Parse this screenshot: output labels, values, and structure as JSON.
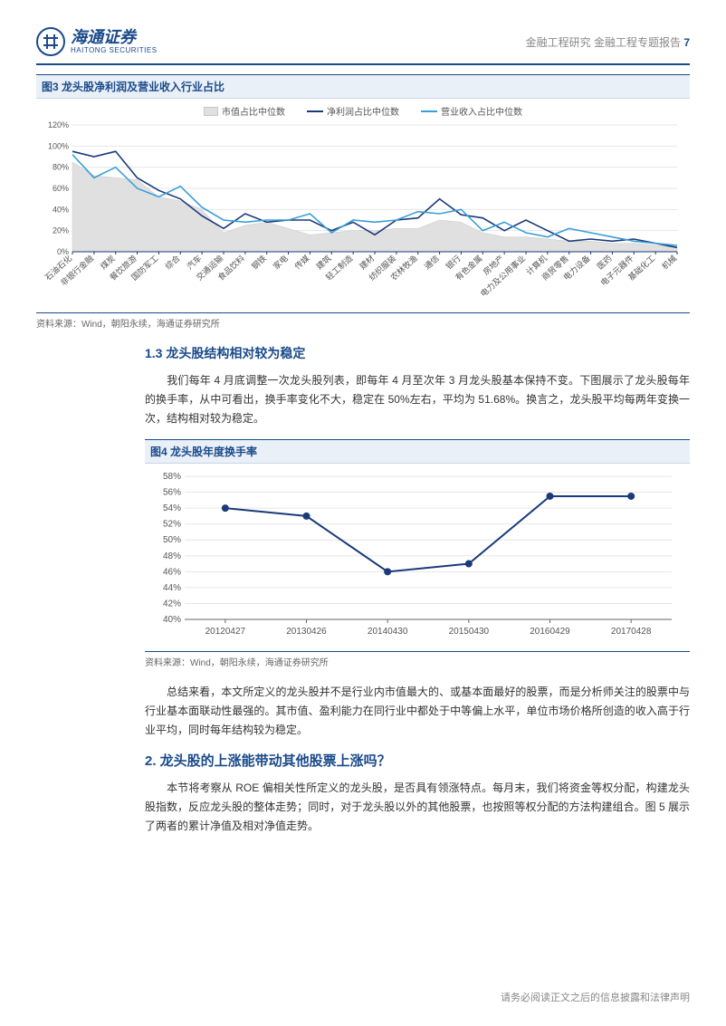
{
  "header": {
    "logo_cn": "海通证券",
    "logo_en": "HAITONG SECURITIES",
    "right_text": "金融工程研究 金融工程专题报告",
    "page_number": "7"
  },
  "figure3": {
    "title": "图3  龙头股净利润及营业收入行业占比",
    "type": "area+line",
    "legend": [
      {
        "label": "市值占比中位数",
        "kind": "area",
        "color": "#e0e0e0"
      },
      {
        "label": "净利润占比中位数",
        "kind": "line",
        "color": "#1a3a7a"
      },
      {
        "label": "营业收入占比中位数",
        "kind": "line",
        "color": "#3a9fd6"
      }
    ],
    "categories": [
      "石油石化",
      "非银行金融",
      "煤炭",
      "餐饮旅游",
      "国防军工",
      "综合",
      "汽车",
      "交通运输",
      "食品饮料",
      "钢铁",
      "家电",
      "传媒",
      "建筑",
      "轻工制造",
      "建材",
      "纺织服装",
      "农林牧渔",
      "通信",
      "银行",
      "有色金属",
      "房地产",
      "电力及公用事业",
      "计算机",
      "商贸零售",
      "电力设备",
      "医药",
      "电子元器件",
      "基础化工",
      "机械"
    ],
    "series_area": [
      85,
      72,
      70,
      68,
      52,
      48,
      40,
      18,
      25,
      28,
      22,
      16,
      18,
      20,
      20,
      22,
      22,
      30,
      28,
      18,
      14,
      14,
      12,
      10,
      10,
      8,
      8,
      6,
      4
    ],
    "series_profit": [
      95,
      90,
      95,
      70,
      58,
      50,
      34,
      22,
      36,
      28,
      30,
      30,
      20,
      28,
      16,
      30,
      32,
      50,
      35,
      32,
      20,
      30,
      20,
      10,
      12,
      10,
      12,
      8,
      4
    ],
    "series_revenue": [
      92,
      70,
      80,
      60,
      52,
      62,
      42,
      30,
      28,
      30,
      30,
      36,
      18,
      30,
      28,
      30,
      38,
      36,
      40,
      20,
      28,
      18,
      14,
      22,
      18,
      14,
      10,
      8,
      6
    ],
    "ylim": [
      0,
      120
    ],
    "yticks": [
      0,
      20,
      40,
      60,
      80,
      100,
      120
    ],
    "ytick_labels": [
      "0%",
      "20%",
      "40%",
      "60%",
      "80%",
      "100%",
      "120%"
    ],
    "axis_color": "#1a3a7a",
    "grid_color": "#e6e6e6",
    "tick_fontsize": 9,
    "xlabel_fontsize": 9,
    "background_color": "#ffffff"
  },
  "source_text": "资料来源：Wind，朝阳永续，海通证券研究所",
  "section_1_3": {
    "heading": "1.3 龙头股结构相对较为稳定",
    "para": "我们每年 4 月底调整一次龙头股列表，即每年 4 月至次年 3 月龙头股基本保持不变。下图展示了龙头股每年的换手率，从中可看出，换手率变化不大，稳定在 50%左右，平均为 51.68%。换言之，龙头股平均每两年变换一次，结构相对较为稳定。"
  },
  "figure4": {
    "title": "图4  龙头股年度换手率",
    "type": "line",
    "categories": [
      "20120427",
      "20130426",
      "20140430",
      "20150430",
      "20160429",
      "20170428"
    ],
    "values": [
      54,
      53,
      46,
      47,
      55.5,
      55.5
    ],
    "ylim": [
      40,
      58
    ],
    "yticks": [
      40,
      42,
      44,
      46,
      48,
      50,
      52,
      54,
      56,
      58
    ],
    "ytick_labels": [
      "40%",
      "42%",
      "44%",
      "46%",
      "48%",
      "50%",
      "52%",
      "54%",
      "56%",
      "58%"
    ],
    "line_color": "#1a3a7a",
    "marker_color": "#1a3a7a",
    "marker_radius": 4,
    "line_width": 2,
    "grid_color": "#e6e6e6",
    "axis_color": "#666666",
    "tick_fontsize": 10,
    "background_color": "#ffffff"
  },
  "para_summary": "总结来看，本文所定义的龙头股并不是行业内市值最大的、或基本面最好的股票，而是分析师关注的股票中与行业基本面联动性最强的。其市值、盈利能力在同行业中都处于中等偏上水平，单位市场价格所创造的收入高于行业平均，同时每年结构较为稳定。",
  "section_2": {
    "heading": "2. 龙头股的上涨能带动其他股票上涨吗？",
    "para": "本节将考察从 ROE 偏相关性所定义的龙头股，是否具有领涨特点。每月末，我们将资金等权分配，构建龙头股指数，反应龙头股的整体走势；同时，对于龙头股以外的其他股票，也按照等权分配的方法构建组合。图 5 展示了两者的累计净值及相对净值走势。"
  },
  "footer_text": "请务必阅读正文之后的信息披露和法律声明"
}
